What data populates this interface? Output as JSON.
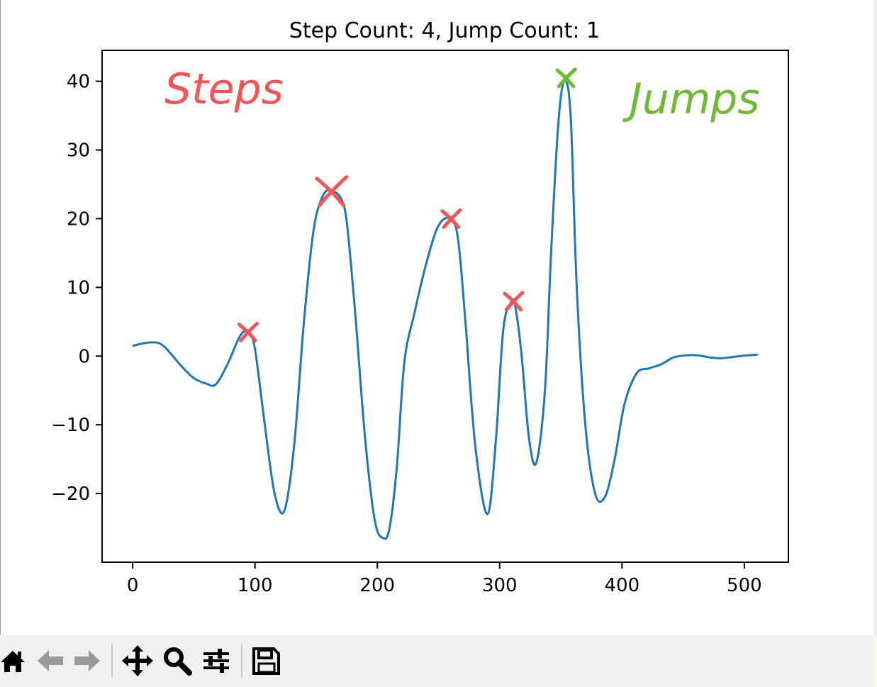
{
  "chart_data": {
    "type": "line",
    "title": "Step Count: 4, Jump Count: 1",
    "xlabel": "",
    "ylabel": "",
    "xlim": [
      -25,
      536
    ],
    "ylim": [
      -30,
      44.5
    ],
    "xticks": [
      0,
      100,
      200,
      300,
      400,
      500
    ],
    "xtick_labels": [
      "0",
      "100",
      "200",
      "300",
      "400",
      "500"
    ],
    "yticks": [
      -20,
      -10,
      0,
      10,
      20,
      30,
      40
    ],
    "ytick_labels": [
      "−20",
      "−10",
      "0",
      "10",
      "20",
      "30",
      "40"
    ],
    "grid": false,
    "series": [
      {
        "color": "#1f77b4",
        "x": [
          0,
          15,
          25,
          40,
          50,
          60,
          68,
          78,
          88,
          95,
          100,
          108,
          116,
          124,
          132,
          140,
          148,
          156,
          163,
          170,
          175,
          182,
          190,
          198,
          205,
          210,
          216,
          222,
          230,
          240,
          250,
          260,
          266,
          272,
          280,
          290,
          297,
          303,
          310,
          313,
          318,
          324,
          330,
          337,
          342,
          348,
          353,
          358,
          363,
          370,
          378,
          386,
          394,
          402,
          412,
          422,
          432,
          442,
          452,
          462,
          472,
          482,
          492,
          502,
          511
        ],
        "y": [
          1.5,
          2.0,
          1.5,
          -1.5,
          -3.2,
          -4.0,
          -4.1,
          -1.0,
          3.0,
          3.5,
          1.0,
          -10.0,
          -20.0,
          -22.5,
          -13.0,
          5.0,
          18.5,
          23.5,
          24.0,
          23.0,
          19.5,
          6.0,
          -12.0,
          -24.0,
          -26.5,
          -25.0,
          -16.0,
          -1.0,
          6.0,
          13.5,
          19.0,
          20.0,
          17.0,
          5.0,
          -13.0,
          -23.0,
          -12.0,
          4.0,
          8.0,
          7.0,
          0.0,
          -12.0,
          -15.5,
          -5.0,
          15.0,
          34.0,
          40.0,
          35.0,
          10.0,
          -10.0,
          -20.0,
          -20.5,
          -15.0,
          -7.0,
          -2.5,
          -1.8,
          -1.2,
          -0.2,
          0.1,
          0.1,
          -0.2,
          -0.3,
          -0.1,
          0.1,
          0.2
        ]
      }
    ],
    "annotations": [
      {
        "text": "Steps",
        "color": "#f05658"
      },
      {
        "text": "Jumps",
        "color": "#6fba34"
      }
    ],
    "step_marks": [
      {
        "x": 94,
        "y": 3.5
      },
      {
        "x": 162,
        "y": 24.0
      },
      {
        "x": 260,
        "y": 20.0
      },
      {
        "x": 311,
        "y": 8.0
      }
    ],
    "jump_marks": [
      {
        "x": 354,
        "y": 40.5
      }
    ],
    "mark_colors": {
      "step": "#f05658",
      "jump": "#6fba34"
    }
  },
  "toolbar": {
    "buttons": [
      {
        "name": "home-button",
        "icon": "home-icon"
      },
      {
        "name": "back-button",
        "icon": "back-arrow-icon"
      },
      {
        "name": "forward-button",
        "icon": "forward-arrow-icon"
      },
      {
        "name": "pan-button",
        "icon": "move-icon"
      },
      {
        "name": "zoom-button",
        "icon": "magnifier-icon"
      },
      {
        "name": "configure-subplots-button",
        "icon": "sliders-icon"
      },
      {
        "name": "save-button",
        "icon": "floppy-disk-icon"
      }
    ]
  }
}
